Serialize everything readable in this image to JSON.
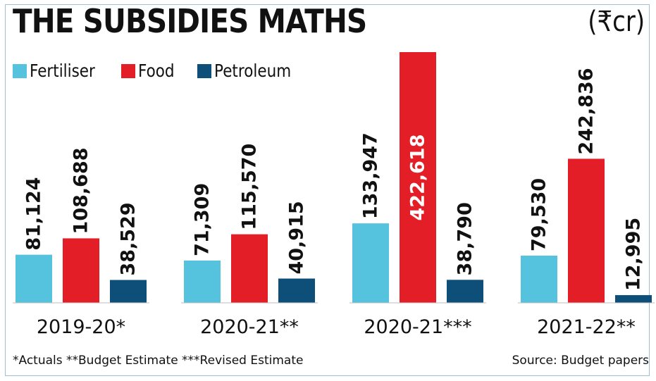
{
  "header": {
    "title": "THE SUBSIDIES MATHS",
    "unit": "(₹cr)"
  },
  "footer": {
    "notes": "*Actuals  **Budget Estimate  ***Revised Estimate",
    "source": "Source: Budget papers"
  },
  "colors": {
    "fertiliser": "#55c3de",
    "food": "#e31e26",
    "petroleum": "#0e4f7a",
    "label_dark": "#111111",
    "label_on_bar": "#ffffff"
  },
  "chart_data": {
    "type": "bar",
    "title": "THE SUBSIDIES MATHS",
    "unit": "(₹cr)",
    "categories": [
      "2019-20*",
      "2020-21**",
      "2020-21***",
      "2021-22**"
    ],
    "series": [
      {
        "name": "Fertiliser",
        "color": "#55c3de",
        "values": [
          81124,
          71309,
          133947,
          79530
        ],
        "labels": [
          "81,124",
          "71,309",
          "133,947",
          "79,530"
        ]
      },
      {
        "name": "Food",
        "color": "#e31e26",
        "values": [
          108688,
          115570,
          422618,
          242836
        ],
        "labels": [
          "108,688",
          "115,570",
          "422,618",
          "242,836"
        ]
      },
      {
        "name": "Petroleum",
        "color": "#0e4f7a",
        "values": [
          38529,
          40915,
          38790,
          12995
        ],
        "labels": [
          "38,529",
          "40,915",
          "38,790",
          "12,995"
        ]
      }
    ],
    "label_inside_bar": {
      "series": 1,
      "category": 2
    },
    "legend_position": "top-left",
    "grid": false,
    "ylim": [
      0,
      422618
    ]
  }
}
